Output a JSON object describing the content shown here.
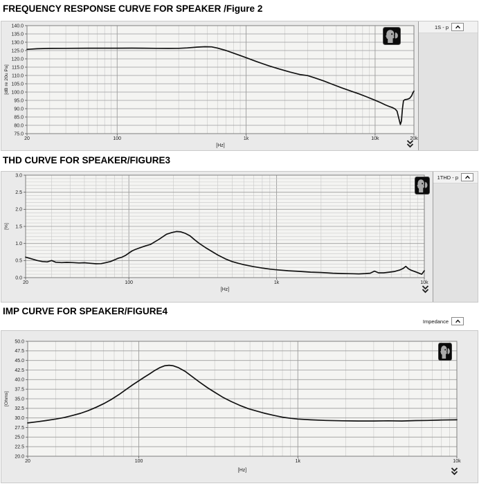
{
  "colors": {
    "curve": "#111111",
    "panel_bg": "#eaeaea",
    "plot_bg": "#f4f4f2",
    "grid_major": "#9b9b9b",
    "grid_minor": "#c8c8c8",
    "plot_border": "#7f7f7f"
  },
  "chart_data": [
    {
      "type": "line",
      "title": "FREQUENCY RESPONSE CURVE FOR SPEAKER /Figure 2",
      "legend": {
        "label": "1S - p",
        "position": "right-sidebar",
        "collapse_icon": "chevron-up-icon"
      },
      "watermark_icon": "listening-head-icon",
      "expand_icon": "double-chevron-down-icon",
      "xlabel": "[Hz]",
      "ylabel": "[dB re 20u Pa]",
      "xscale": "log",
      "grid": true,
      "xlim": [
        20,
        20000
      ],
      "ylim": [
        75,
        140
      ],
      "ytick_step": 5,
      "yminor_step": null,
      "ytick_decimals": 1,
      "xticks": [
        {
          "v": 20,
          "label": "20"
        },
        {
          "v": 100,
          "label": "100"
        },
        {
          "v": 1000,
          "label": "1k"
        },
        {
          "v": 10000,
          "label": "10k"
        },
        {
          "v": 20000,
          "label": "20k"
        }
      ],
      "series": [
        {
          "name": "1S - p",
          "x": [
            20,
            24,
            30,
            40,
            60,
            80,
            100,
            130,
            160,
            200,
            250,
            300,
            350,
            420,
            480,
            540,
            600,
            700,
            800,
            900,
            1000,
            1200,
            1500,
            1800,
            2200,
            2600,
            3000,
            3400,
            4000,
            4700,
            5500,
            6500,
            7500,
            8500,
            10000,
            11000,
            12000,
            13000,
            13700,
            14300,
            14800,
            15300,
            15700,
            16000,
            16300,
            16600,
            17000,
            17800,
            18500,
            19200,
            19600,
            20000
          ],
          "y": [
            125.7,
            126.1,
            126.3,
            126.35,
            126.4,
            126.4,
            126.4,
            126.45,
            126.4,
            126.35,
            126.3,
            126.35,
            126.6,
            127.1,
            127.3,
            127.2,
            126.5,
            125.0,
            123.4,
            122.0,
            120.7,
            118.4,
            115.8,
            113.9,
            112.0,
            110.6,
            109.9,
            108.6,
            106.7,
            104.6,
            102.6,
            100.6,
            98.9,
            97.3,
            95.1,
            93.7,
            92.3,
            91.2,
            90.6,
            89.8,
            88.5,
            84.0,
            80.5,
            82.5,
            90.0,
            94.8,
            95.4,
            95.7,
            96.2,
            97.8,
            99.5,
            100.6
          ]
        }
      ]
    },
    {
      "type": "line",
      "title": "THD CURVE FOR SPEAKER/FIGURE3",
      "legend": {
        "label": "1THD - p",
        "position": "right-sidebar",
        "collapse_icon": "chevron-up-icon"
      },
      "watermark_icon": "listening-head-icon",
      "expand_icon": "double-chevron-down-icon",
      "xlabel": "[Hz]",
      "ylabel": "[%]",
      "xscale": "log",
      "grid": true,
      "xlim": [
        20,
        10000
      ],
      "ylim": [
        0,
        3
      ],
      "ytick_step": 0.5,
      "yminor_step": 0.1,
      "ytick_decimals": 1,
      "xticks": [
        {
          "v": 20,
          "label": "20"
        },
        {
          "v": 100,
          "label": "100"
        },
        {
          "v": 1000,
          "label": "1k"
        },
        {
          "v": 10000,
          "label": "10k"
        }
      ],
      "series": [
        {
          "name": "1THD - p",
          "x": [
            20,
            22,
            24,
            26,
            28,
            30,
            32,
            35,
            38,
            42,
            46,
            50,
            55,
            60,
            65,
            70,
            75,
            80,
            85,
            90,
            95,
            100,
            105,
            110,
            120,
            130,
            140,
            150,
            160,
            170,
            180,
            195,
            210,
            225,
            240,
            260,
            280,
            300,
            330,
            360,
            400,
            450,
            500,
            550,
            600,
            700,
            800,
            900,
            1000,
            1200,
            1400,
            1700,
            2000,
            2400,
            2800,
            3200,
            3600,
            4000,
            4300,
            4600,
            4900,
            5300,
            5800,
            6300,
            6800,
            7200,
            7500,
            7800,
            8200,
            8700,
            9200,
            9600,
            10000
          ],
          "y": [
            0.6,
            0.55,
            0.5,
            0.47,
            0.46,
            0.5,
            0.45,
            0.44,
            0.445,
            0.44,
            0.43,
            0.435,
            0.42,
            0.405,
            0.41,
            0.44,
            0.47,
            0.52,
            0.57,
            0.6,
            0.65,
            0.72,
            0.78,
            0.82,
            0.88,
            0.93,
            0.97,
            1.05,
            1.12,
            1.2,
            1.27,
            1.32,
            1.35,
            1.34,
            1.3,
            1.22,
            1.1,
            1.0,
            0.88,
            0.78,
            0.66,
            0.55,
            0.47,
            0.42,
            0.38,
            0.32,
            0.28,
            0.25,
            0.23,
            0.2,
            0.185,
            0.16,
            0.15,
            0.13,
            0.12,
            0.115,
            0.11,
            0.12,
            0.13,
            0.19,
            0.14,
            0.14,
            0.16,
            0.18,
            0.22,
            0.27,
            0.33,
            0.26,
            0.21,
            0.17,
            0.13,
            0.1,
            0.2
          ]
        }
      ]
    },
    {
      "type": "line",
      "title": "IMP CURVE FOR SPEAKER/FIGURE4",
      "legend": {
        "label": "Impedance",
        "position": "top-right",
        "collapse_icon": "chevron-up-icon"
      },
      "watermark_icon": "listening-head-icon",
      "expand_icon": "double-chevron-down-icon",
      "xlabel": "[Hz]",
      "ylabel": "[Ohms]",
      "xscale": "log",
      "grid": true,
      "xlim": [
        20,
        10000
      ],
      "ylim": [
        20,
        50
      ],
      "ytick_step": 2.5,
      "yminor_step": null,
      "ytick_decimals": 1,
      "xticks": [
        {
          "v": 20,
          "label": "20"
        },
        {
          "v": 100,
          "label": "100"
        },
        {
          "v": 1000,
          "label": "1k"
        },
        {
          "v": 10000,
          "label": "10k"
        }
      ],
      "series": [
        {
          "name": "Impedance",
          "x": [
            20,
            23,
            26,
            30,
            34,
            38,
            43,
            48,
            54,
            60,
            67,
            75,
            83,
            92,
            100,
            108,
            117,
            126,
            135,
            145,
            155,
            165,
            178,
            195,
            215,
            240,
            270,
            300,
            340,
            380,
            430,
            490,
            550,
            620,
            700,
            800,
            900,
            1000,
            1200,
            1500,
            1900,
            2400,
            3000,
            3700,
            4500,
            5500,
            6500,
            8000,
            10000
          ],
          "y": [
            28.7,
            29.0,
            29.3,
            29.7,
            30.1,
            30.6,
            31.2,
            31.9,
            32.8,
            33.7,
            34.8,
            36.1,
            37.4,
            38.7,
            39.7,
            40.6,
            41.5,
            42.4,
            43.1,
            43.6,
            43.75,
            43.6,
            43.1,
            42.2,
            40.9,
            39.4,
            37.9,
            36.7,
            35.3,
            34.3,
            33.3,
            32.4,
            31.8,
            31.2,
            30.7,
            30.2,
            29.9,
            29.7,
            29.5,
            29.35,
            29.25,
            29.2,
            29.2,
            29.25,
            29.2,
            29.3,
            29.35,
            29.45,
            29.5
          ]
        }
      ]
    }
  ]
}
